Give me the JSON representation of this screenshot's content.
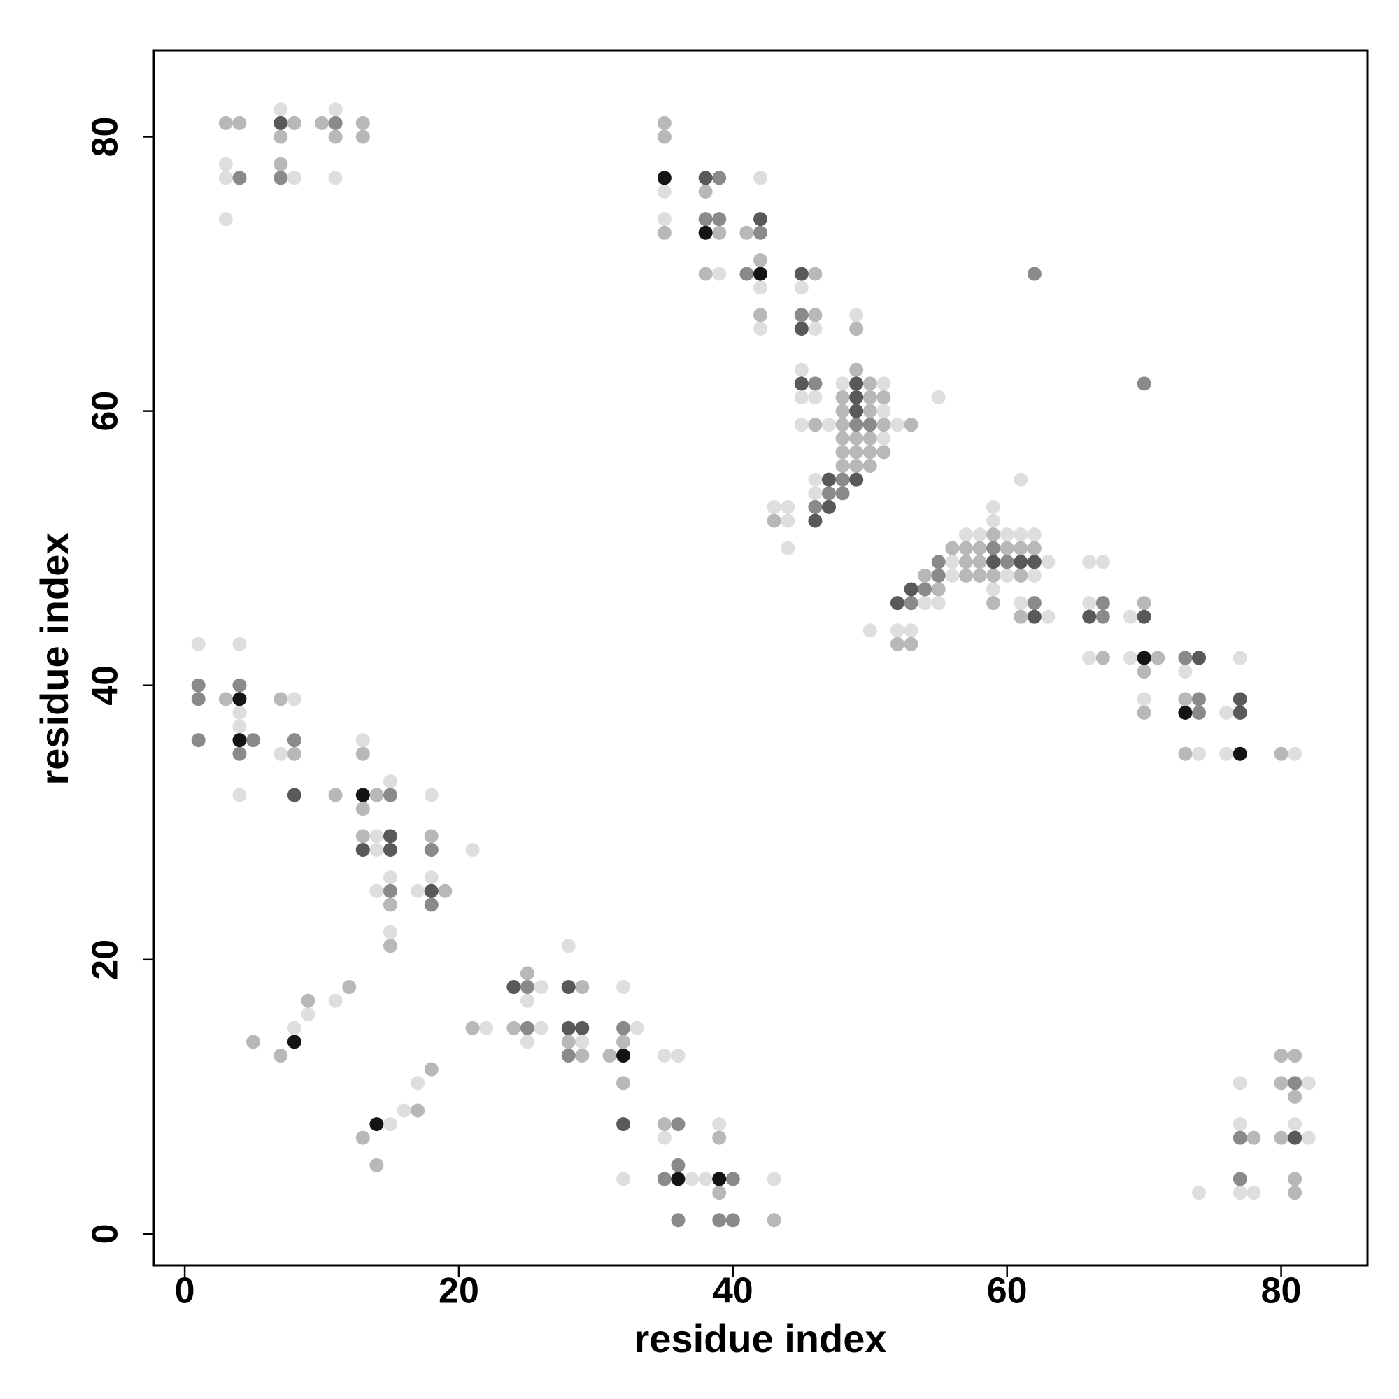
{
  "chart_data": {
    "type": "scatter",
    "xlabel": "residue index",
    "ylabel": "residue index",
    "xlim": [
      -2.25,
      86.3
    ],
    "ylim": [
      -2.3,
      86.3
    ],
    "xticks": [
      0,
      20,
      40,
      60,
      80
    ],
    "yticks": [
      0,
      20,
      40,
      60,
      80
    ],
    "series": [
      {
        "color": "#dedede",
        "x": [
          7,
          11,
          3,
          3,
          8,
          11,
          3,
          42,
          35,
          35,
          39,
          42,
          45,
          49,
          42,
          46,
          45,
          48,
          51,
          45,
          46,
          55,
          51,
          45,
          47,
          52,
          51,
          46,
          61,
          46,
          43,
          44,
          59,
          44,
          59,
          57,
          58,
          60,
          61,
          62,
          44,
          56,
          63,
          66,
          67,
          56,
          60,
          62,
          59,
          54,
          55,
          61,
          66,
          63,
          69,
          50,
          52,
          53,
          66,
          69,
          77,
          73,
          70,
          76,
          74,
          76,
          81,
          1,
          4,
          8,
          4,
          4,
          13,
          7,
          15,
          4,
          18,
          14,
          14,
          21,
          15,
          18,
          14,
          17,
          15,
          28,
          26,
          32,
          11,
          25,
          9,
          8,
          22,
          26,
          33,
          25,
          29,
          35,
          36,
          17,
          77,
          82,
          16,
          15,
          39,
          77,
          81,
          35,
          82,
          32,
          37,
          38,
          43,
          74,
          77,
          78
        ],
        "values": [
          82,
          82,
          78,
          77,
          77,
          77,
          74,
          77,
          76,
          74,
          70,
          69,
          69,
          67,
          66,
          66,
          63,
          62,
          62,
          61,
          61,
          61,
          60,
          59,
          59,
          59,
          58,
          55,
          55,
          54,
          53,
          53,
          53,
          52,
          52,
          51,
          51,
          51,
          51,
          51,
          50,
          49,
          49,
          49,
          49,
          48,
          48,
          48,
          47,
          46,
          46,
          46,
          46,
          45,
          45,
          44,
          44,
          44,
          42,
          42,
          42,
          41,
          39,
          38,
          35,
          35,
          35,
          43,
          43,
          39,
          38,
          37,
          36,
          35,
          33,
          32,
          32,
          29,
          28,
          28,
          26,
          26,
          25,
          25,
          22,
          21,
          18,
          18,
          17,
          17,
          16,
          15,
          15,
          15,
          15,
          14,
          14,
          13,
          13,
          11,
          11,
          11,
          9,
          8,
          8,
          8,
          8,
          7,
          7,
          4,
          4,
          4,
          4,
          3,
          3,
          3
        ]
      },
      {
        "color": "#b8b8b8",
        "x": [
          3,
          4,
          8,
          10,
          13,
          7,
          11,
          13,
          7,
          35,
          35,
          38,
          35,
          39,
          41,
          42,
          38,
          46,
          42,
          46,
          49,
          49,
          50,
          48,
          50,
          51,
          48,
          50,
          46,
          48,
          51,
          53,
          48,
          49,
          50,
          48,
          49,
          50,
          51,
          48,
          49,
          50,
          43,
          59,
          56,
          57,
          58,
          60,
          61,
          62,
          57,
          58,
          54,
          57,
          58,
          59,
          61,
          55,
          59,
          70,
          61,
          52,
          53,
          67,
          71,
          70,
          73,
          70,
          73,
          80,
          3,
          7,
          8,
          13,
          11,
          14,
          13,
          13,
          18,
          19,
          15,
          15,
          25,
          12,
          29,
          9,
          21,
          24,
          5,
          28,
          32,
          7,
          29,
          31,
          80,
          81,
          18,
          32,
          80,
          81,
          17,
          35,
          13,
          39,
          78,
          80,
          14,
          81,
          39,
          81,
          43
        ],
        "values": [
          81,
          81,
          81,
          81,
          81,
          80,
          80,
          80,
          78,
          81,
          80,
          76,
          73,
          73,
          73,
          71,
          70,
          70,
          67,
          67,
          66,
          63,
          62,
          61,
          61,
          61,
          60,
          60,
          59,
          59,
          59,
          59,
          58,
          58,
          58,
          57,
          57,
          57,
          57,
          56,
          56,
          56,
          52,
          51,
          50,
          50,
          50,
          50,
          50,
          50,
          49,
          49,
          48,
          48,
          48,
          48,
          48,
          47,
          46,
          46,
          45,
          43,
          43,
          42,
          42,
          41,
          39,
          38,
          35,
          35,
          39,
          39,
          35,
          35,
          32,
          32,
          31,
          29,
          29,
          25,
          24,
          21,
          19,
          18,
          18,
          17,
          15,
          15,
          14,
          14,
          14,
          13,
          13,
          13,
          13,
          13,
          12,
          11,
          11,
          10,
          9,
          8,
          7,
          7,
          7,
          7,
          5,
          4,
          3,
          3,
          1
        ]
      },
      {
        "color": "#8a8a8a",
        "x": [
          11,
          4,
          7,
          39,
          38,
          39,
          42,
          41,
          62,
          45,
          46,
          70,
          49,
          50,
          48,
          47,
          48,
          46,
          59,
          55,
          60,
          55,
          54,
          53,
          62,
          67,
          67,
          73,
          74,
          74,
          1,
          4,
          1,
          1,
          5,
          8,
          4,
          15,
          18,
          15,
          18,
          25,
          25,
          32,
          28,
          36,
          77,
          36,
          35,
          40,
          77,
          36,
          39,
          40,
          81
        ],
        "values": [
          81,
          77,
          77,
          77,
          74,
          74,
          73,
          70,
          70,
          67,
          62,
          62,
          59,
          59,
          55,
          54,
          54,
          53,
          50,
          49,
          49,
          48,
          47,
          46,
          46,
          46,
          45,
          42,
          39,
          38,
          40,
          40,
          39,
          36,
          36,
          36,
          35,
          32,
          28,
          25,
          24,
          18,
          15,
          15,
          13,
          8,
          7,
          5,
          4,
          4,
          4,
          1,
          1,
          1,
          11
        ]
      },
      {
        "color": "#595959",
        "x": [
          7,
          38,
          42,
          45,
          45,
          45,
          49,
          49,
          49,
          47,
          49,
          47,
          46,
          59,
          61,
          62,
          53,
          52,
          62,
          66,
          70,
          74,
          77,
          77,
          8,
          15,
          13,
          15,
          18,
          24,
          28,
          28,
          29,
          32,
          81
        ],
        "values": [
          81,
          77,
          74,
          70,
          66,
          62,
          62,
          61,
          60,
          55,
          55,
          53,
          52,
          49,
          49,
          49,
          47,
          46,
          45,
          45,
          45,
          42,
          39,
          38,
          32,
          29,
          28,
          28,
          25,
          18,
          18,
          15,
          15,
          8,
          7
        ]
      },
      {
        "color": "#141414",
        "x": [
          35,
          38,
          42,
          70,
          73,
          77,
          4,
          4,
          13,
          8,
          32,
          14,
          36,
          39
        ],
        "values": [
          77,
          73,
          70,
          42,
          38,
          35,
          39,
          36,
          32,
          14,
          13,
          8,
          4,
          4
        ]
      }
    ]
  }
}
